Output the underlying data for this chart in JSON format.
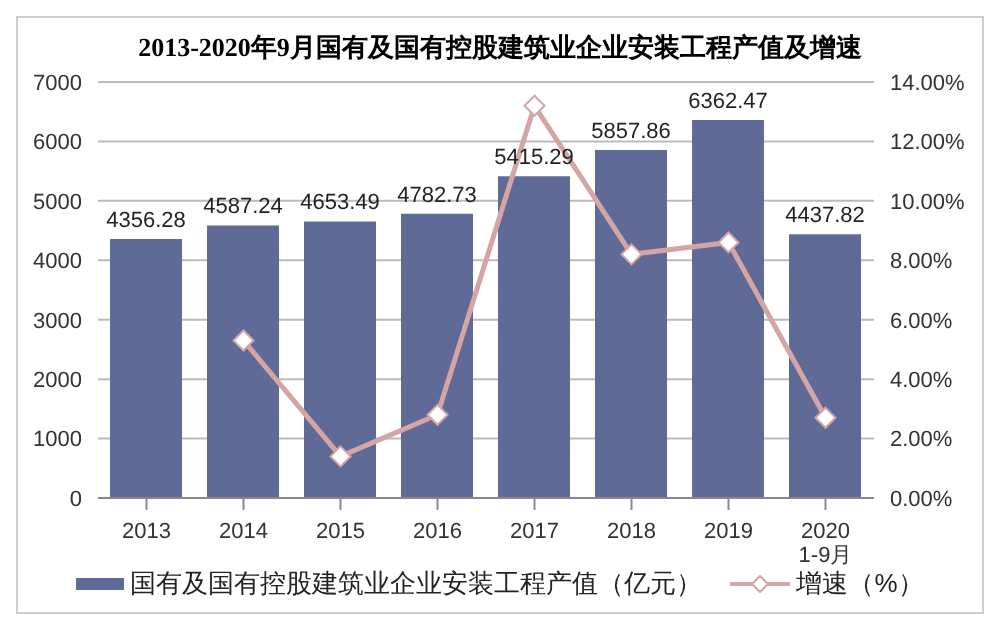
{
  "chart_data": {
    "type": "bar",
    "title": "2013-2020年9月国有及国有控股建筑业企业安装工程产值及增速",
    "categories": [
      "2013",
      "2014",
      "2015",
      "2016",
      "2017",
      "2018",
      "2019",
      "2020\n1-9月"
    ],
    "series": [
      {
        "name": "国有及国有控股建筑业企业安装工程产值（亿元）",
        "color": "#5f6b96",
        "values": [
          4356.28,
          4587.24,
          4653.49,
          4782.73,
          5415.29,
          5857.86,
          6362.47,
          4437.82
        ],
        "value_labels": [
          "4356.28",
          "4587.24",
          "4653.49",
          "4782.73",
          "5415.29",
          "5857.86",
          "6362.47",
          "4437.82"
        ]
      },
      {
        "name": "增速（%）",
        "type": "line",
        "axis": "y2",
        "color": "#d4a5a5",
        "marker": "diamond",
        "values": [
          null,
          5.3,
          1.4,
          2.8,
          13.2,
          8.2,
          8.6,
          2.7
        ]
      }
    ],
    "ylim": [
      0,
      7000
    ],
    "yticks": [
      0,
      1000,
      2000,
      3000,
      4000,
      5000,
      6000,
      7000
    ],
    "y2lim": [
      0,
      14
    ],
    "y2ticks": [
      {
        "value": 0,
        "label": "0.00%"
      },
      {
        "value": 2,
        "label": "2.00%"
      },
      {
        "value": 4,
        "label": "4.00%"
      },
      {
        "value": 6,
        "label": "6.00%"
      },
      {
        "value": 8,
        "label": "8.00%"
      },
      {
        "value": 10,
        "label": "10.00%"
      },
      {
        "value": 12,
        "label": "12.00%"
      },
      {
        "value": 14,
        "label": "14.00%"
      }
    ],
    "grid": "y",
    "legend": "bottom"
  }
}
